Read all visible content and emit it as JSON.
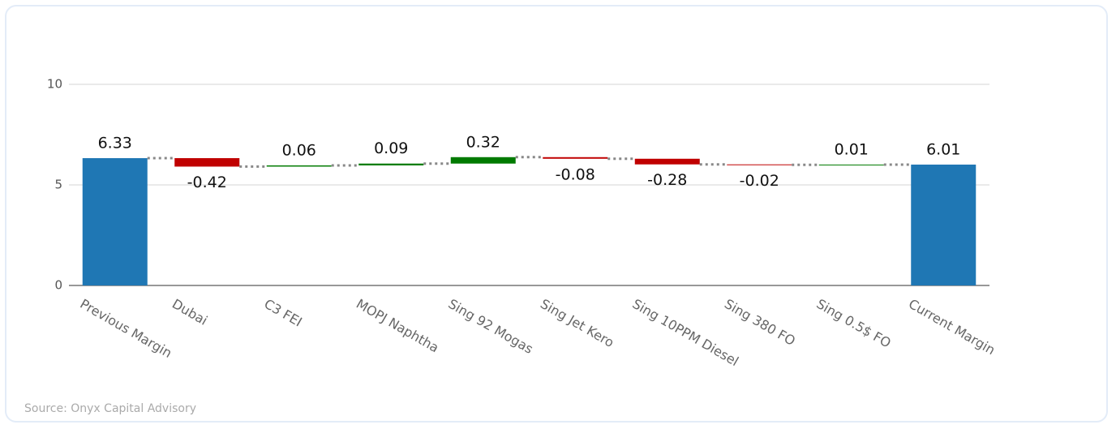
{
  "chart_data": {
    "type": "waterfall",
    "categories": [
      "Previous Margin",
      "Dubai",
      "C3 FEI",
      "MOPJ Naphtha",
      "Sing 92 Mogas",
      "Sing Jet Kero",
      "Sing 10PPM Diesel",
      "Sing 380 FO",
      "Sing 0.5$ FO",
      "Current Margin"
    ],
    "values": [
      6.33,
      -0.42,
      0.06,
      0.09,
      0.32,
      -0.08,
      -0.28,
      -0.02,
      0.01,
      6.01
    ],
    "measure": [
      "absolute",
      "relative",
      "relative",
      "relative",
      "relative",
      "relative",
      "relative",
      "relative",
      "relative",
      "total"
    ],
    "increasing_color": "#007a00",
    "decreasing_color": "#c00000",
    "total_color": "#1f77b4",
    "ylim": [
      0,
      12.5
    ],
    "yticks": [
      0,
      5,
      10
    ],
    "grid": true,
    "source": "Source: Onyx Capital Advisory"
  }
}
